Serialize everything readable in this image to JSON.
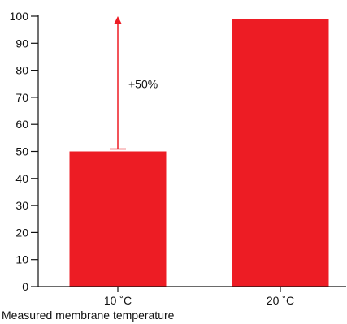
{
  "chart_data": {
    "type": "bar",
    "title": "",
    "xlabel": "Measured membrane temperature",
    "ylabel": "",
    "categories": [
      "10 ˚C",
      "20 ˚C"
    ],
    "values": [
      50,
      99
    ],
    "ylim": [
      0,
      100
    ],
    "yticks": [
      0,
      10,
      20,
      30,
      40,
      50,
      60,
      70,
      80,
      90,
      100
    ],
    "grid": false,
    "bar_color": "#ed1c24",
    "annotation": {
      "text": "+50%",
      "category": "10 ˚C",
      "from": 50,
      "to": 100,
      "color": "#ed1c24"
    }
  }
}
